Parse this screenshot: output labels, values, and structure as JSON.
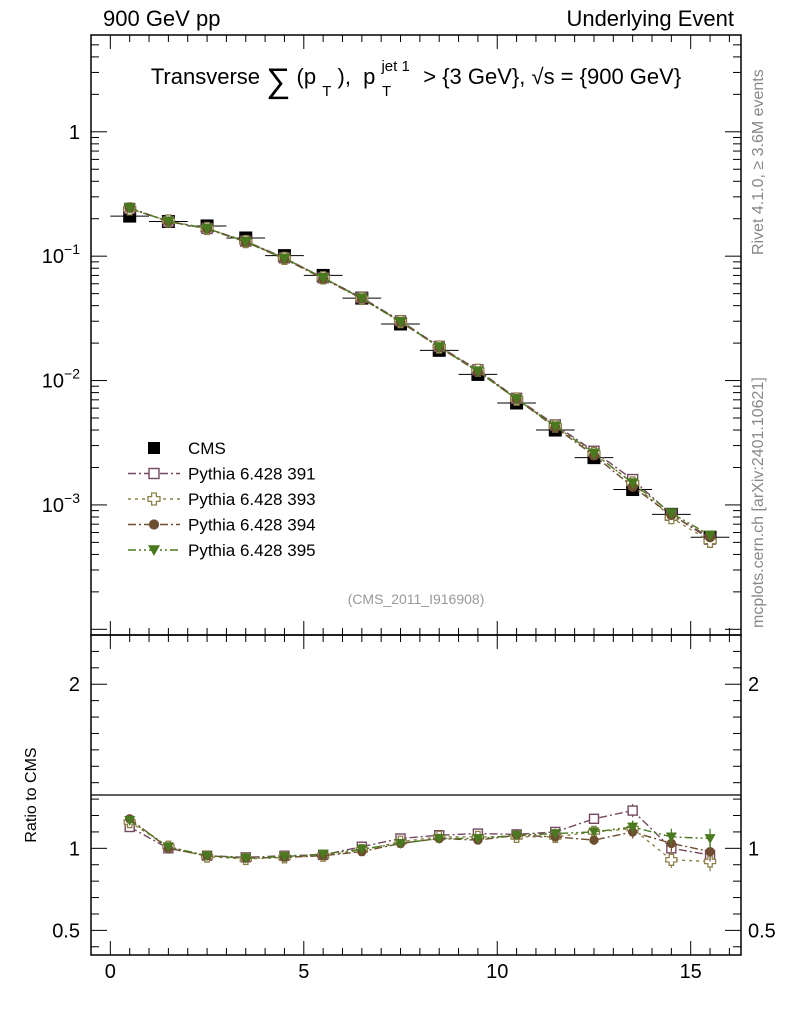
{
  "header": {
    "left": "900 GeV pp",
    "right": "Underlying Event"
  },
  "side": {
    "top": "Rivet 4.1.0, ≥ 3.6M events",
    "bottom": "mcplots.cern.ch [arXiv:2401.10621]"
  },
  "chart_data": {
    "type": "scatter",
    "title": {
      "prefix": "Transverse",
      "sum": "∑",
      "pt": "(p",
      "pt_sub": "T",
      "pt_close": "),",
      "pjet": "p",
      "pjet_sub": "T",
      "pjet_sup": "jet 1",
      "rest": "> {3 GeV}, √s = {900 GeV}"
    },
    "watermark": "(CMS_2011_I916908)",
    "x": [
      0.5,
      1.5,
      2.5,
      3.5,
      4.5,
      5.5,
      6.5,
      7.5,
      8.5,
      9.5,
      10.5,
      11.5,
      12.5,
      13.5,
      14.5,
      15.5
    ],
    "xlim": [
      -0.5,
      16.3
    ],
    "xticks": [
      0,
      5,
      10,
      15
    ],
    "main": {
      "yscale": "log",
      "ylim": [
        9e-05,
        6
      ],
      "yticks": [
        {
          "label": "1",
          "value": 1
        },
        {
          "label": "10",
          "exp": "−1",
          "value": 0.1
        },
        {
          "label": "10",
          "exp": "−2",
          "value": 0.01
        },
        {
          "label": "10",
          "exp": "−3",
          "value": 0.001
        }
      ]
    },
    "ratio": {
      "ylabel": "Ratio to CMS",
      "ylim": [
        0.35,
        2.3
      ],
      "yticks": [
        "0.5",
        "1",
        "2"
      ],
      "ytick_values": [
        0.5,
        1,
        2
      ]
    },
    "legend": {
      "position": "lower-left",
      "entries": [
        "CMS",
        "Pythia 6.428 391",
        "Pythia 6.428 393",
        "Pythia 6.428 394",
        "Pythia 6.428 395"
      ]
    },
    "series": [
      {
        "name": "CMS",
        "color": "#000000",
        "marker": "square-filled",
        "values": [
          0.21,
          0.19,
          0.175,
          0.14,
          0.101,
          0.07,
          0.046,
          0.0285,
          0.0175,
          0.0112,
          0.0066,
          0.004,
          0.0024,
          0.00133,
          0.00084,
          0.00055
        ]
      },
      {
        "name": "Pythia 6.428 391",
        "color": "#734860",
        "marker": "square-open",
        "dash": "8,3,2,3",
        "values": [
          0.242,
          0.19,
          0.167,
          0.132,
          0.097,
          0.067,
          0.0464,
          0.0302,
          0.0188,
          0.0122,
          0.0072,
          0.0044,
          0.0027,
          0.0016,
          0.00084,
          0.00053
        ],
        "ratio": [
          1.13,
          1.0,
          0.955,
          0.945,
          0.955,
          0.96,
          1.01,
          1.06,
          1.08,
          1.09,
          1.085,
          1.1,
          1.18,
          1.23,
          1.0,
          0.96
        ],
        "ratio_err": [
          0.02,
          0.01,
          0.01,
          0.01,
          0.01,
          0.01,
          0.01,
          0.01,
          0.015,
          0.02,
          0.02,
          0.03,
          0.03,
          0.04,
          0.05,
          0.06
        ]
      },
      {
        "name": "Pythia 6.428 393",
        "color": "#8c8048",
        "marker": "cross-open",
        "dash": "3,4",
        "values": [
          0.24,
          0.192,
          0.167,
          0.131,
          0.096,
          0.067,
          0.0457,
          0.0298,
          0.0186,
          0.0121,
          0.0071,
          0.0043,
          0.0026,
          0.0015,
          0.00079,
          0.00051
        ],
        "ratio": [
          1.16,
          1.01,
          0.95,
          0.935,
          0.945,
          0.955,
          0.99,
          1.04,
          1.07,
          1.07,
          1.07,
          1.07,
          1.1,
          1.12,
          0.93,
          0.92
        ],
        "ratio_err": [
          0.02,
          0.01,
          0.01,
          0.01,
          0.01,
          0.01,
          0.01,
          0.01,
          0.015,
          0.02,
          0.02,
          0.03,
          0.03,
          0.04,
          0.05,
          0.06
        ]
      },
      {
        "name": "Pythia 6.428 394",
        "color": "#6e4e30",
        "marker": "circle-filled",
        "dash": "8,3,2,3",
        "values": [
          0.245,
          0.19,
          0.166,
          0.13,
          0.095,
          0.066,
          0.0455,
          0.0296,
          0.0185,
          0.0118,
          0.0071,
          0.0042,
          0.0025,
          0.0014,
          0.00083,
          0.00055
        ],
        "ratio": [
          1.18,
          1.0,
          0.955,
          0.94,
          0.945,
          0.955,
          0.98,
          1.03,
          1.06,
          1.05,
          1.08,
          1.07,
          1.05,
          1.1,
          1.03,
          0.98
        ],
        "ratio_err": [
          0.02,
          0.01,
          0.01,
          0.01,
          0.01,
          0.01,
          0.01,
          0.01,
          0.015,
          0.02,
          0.02,
          0.03,
          0.03,
          0.04,
          0.05,
          0.06
        ]
      },
      {
        "name": "Pythia 6.428 395",
        "color": "#4a7a1f",
        "marker": "triangle-down-filled",
        "dash": "8,3,2,3,2,3",
        "values": [
          0.244,
          0.19,
          0.167,
          0.131,
          0.096,
          0.067,
          0.0458,
          0.0297,
          0.0186,
          0.0119,
          0.0071,
          0.0043,
          0.0026,
          0.0015,
          0.00086,
          0.00057
        ],
        "ratio": [
          1.17,
          1.01,
          0.955,
          0.94,
          0.95,
          0.965,
          0.995,
          1.03,
          1.06,
          1.06,
          1.08,
          1.09,
          1.1,
          1.13,
          1.07,
          1.06
        ],
        "ratio_err": [
          0.02,
          0.01,
          0.01,
          0.01,
          0.01,
          0.01,
          0.01,
          0.01,
          0.015,
          0.02,
          0.02,
          0.03,
          0.03,
          0.04,
          0.05,
          0.06
        ]
      }
    ]
  }
}
